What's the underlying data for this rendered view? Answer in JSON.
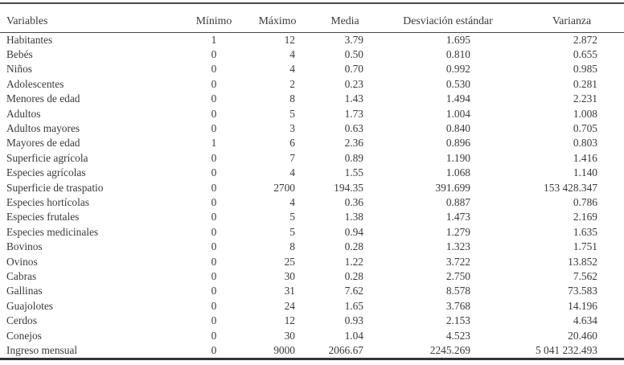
{
  "style": {
    "background": "#ffffff",
    "text_color": "#3a3a3a",
    "rule_color": "#474747"
  },
  "table": {
    "columns": [
      {
        "label": "Variables",
        "align": "left"
      },
      {
        "label": "Mínimo",
        "align": "center"
      },
      {
        "label": "Máximo",
        "align": "right"
      },
      {
        "label": "Media",
        "align": "right"
      },
      {
        "label": "Desviación estándar",
        "align": "right"
      },
      {
        "label": "Varianza",
        "align": "right"
      }
    ],
    "rows": [
      [
        "Habitantes",
        "1",
        "12",
        "3.79",
        "1.695",
        "2.872"
      ],
      [
        "Bebés",
        "0",
        "4",
        "0.50",
        "0.810",
        "0.655"
      ],
      [
        "Niños",
        "0",
        "4",
        "0.70",
        "0.992",
        "0.985"
      ],
      [
        "Adolescentes",
        "0",
        "2",
        "0.23",
        "0.530",
        "0.281"
      ],
      [
        "Menores de edad",
        "0",
        "8",
        "1.43",
        "1.494",
        "2.231"
      ],
      [
        "Adultos",
        "0",
        "5",
        "1.73",
        "1.004",
        "1.008"
      ],
      [
        "Adultos mayores",
        "0",
        "3",
        "0.63",
        "0.840",
        "0.705"
      ],
      [
        "Mayores de edad",
        "1",
        "6",
        "2.36",
        "0.896",
        "0.803"
      ],
      [
        "Superficie agrícola",
        "0",
        "7",
        "0.89",
        "1.190",
        "1.416"
      ],
      [
        "Especies agrícolas",
        "0",
        "4",
        "1.55",
        "1.068",
        "1.140"
      ],
      [
        "Superficie de traspatio",
        "0",
        "2700",
        "194.35",
        "391.699",
        "153 428.347"
      ],
      [
        "Especies hortícolas",
        "0",
        "4",
        "0.36",
        "0.887",
        "0.786"
      ],
      [
        "Especies frutales",
        "0",
        "5",
        "1.38",
        "1.473",
        "2.169"
      ],
      [
        "Especies medicinales",
        "0",
        "5",
        "0.94",
        "1.279",
        "1.635"
      ],
      [
        "Bovinos",
        "0",
        "8",
        "0.28",
        "1.323",
        "1.751"
      ],
      [
        "Ovinos",
        "0",
        "25",
        "1.22",
        "3.722",
        "13.852"
      ],
      [
        "Cabras",
        "0",
        "30",
        "0.28",
        "2.750",
        "7.562"
      ],
      [
        "Gallinas",
        "0",
        "31",
        "7.62",
        "8.578",
        "73.583"
      ],
      [
        "Guajolotes",
        "0",
        "24",
        "1.65",
        "3.768",
        "14.196"
      ],
      [
        "Cerdos",
        "0",
        "12",
        "0.93",
        "2.153",
        "4.634"
      ],
      [
        "Conejos",
        "0",
        "30",
        "1.04",
        "4.523",
        "20.460"
      ],
      [
        "Ingreso mensual",
        "0",
        "9000",
        "2066.67",
        "2245.269",
        "5 041 232.493"
      ]
    ]
  }
}
